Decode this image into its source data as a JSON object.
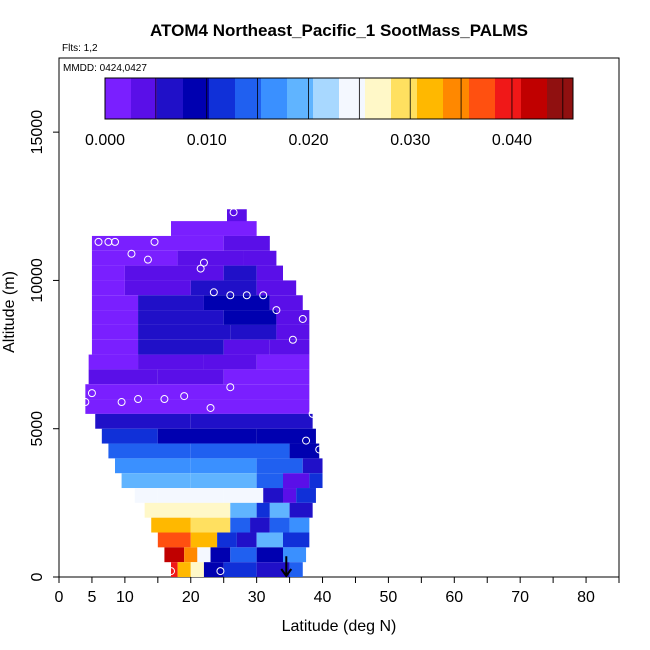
{
  "chart_data": {
    "type": "heatmap",
    "title": "ATOM4 Northeast_Pacific_1 SootMass_PALMS",
    "annotations": [
      "Flts: 1,2",
      "MMDD: 0424,0427"
    ],
    "xlabel": "Latitude (deg N)",
    "ylabel": "Altitude (m)",
    "xlim": [
      0,
      85
    ],
    "ylim": [
      0,
      17500
    ],
    "x_ticks": [
      {
        "value": 0,
        "label": "0"
      },
      {
        "value": 5,
        "label": "5"
      },
      {
        "value": 10,
        "label": "10"
      },
      {
        "value": 20,
        "label": "20"
      },
      {
        "value": 30,
        "label": "30"
      },
      {
        "value": 40,
        "label": "40"
      },
      {
        "value": 50,
        "label": "50"
      },
      {
        "value": 60,
        "label": "60"
      },
      {
        "value": 70,
        "label": "70"
      },
      {
        "value": 80,
        "label": "80"
      }
    ],
    "x_minor_ticks": [
      15,
      25,
      35,
      45,
      55,
      65,
      75,
      85
    ],
    "y_ticks": [
      {
        "value": 0,
        "label": "0"
      },
      {
        "value": 5000,
        "label": "5000"
      },
      {
        "value": 10000,
        "label": "10000"
      },
      {
        "value": 15000,
        "label": "15000"
      }
    ],
    "colorbar": {
      "range": [
        0,
        0.046
      ],
      "ticks": [
        {
          "value": 0.0,
          "label": "0.000"
        },
        {
          "value": 0.01,
          "label": "0.010"
        },
        {
          "value": 0.02,
          "label": "0.020"
        },
        {
          "value": 0.03,
          "label": "0.030"
        },
        {
          "value": 0.04,
          "label": "0.040"
        }
      ],
      "colors": [
        "#7a1fff",
        "#5a0fe8",
        "#2010c8",
        "#0000b0",
        "#1030d8",
        "#2060f0",
        "#3a90ff",
        "#60b4ff",
        "#a8d8ff",
        "#f4f8ff",
        "#fff8c8",
        "#ffe060",
        "#ffb800",
        "#ff8800",
        "#ff5010",
        "#f01818",
        "#c00000",
        "#901010"
      ]
    },
    "rows": [
      {
        "alt": 11900,
        "cells": [
          [
            25.5,
            28.5,
            0.003
          ]
        ]
      },
      {
        "alt": 11500,
        "cells": [
          [
            17,
            30,
            0.002
          ]
        ]
      },
      {
        "alt": 11000,
        "cells": [
          [
            5,
            25,
            0.002
          ],
          [
            25,
            32,
            0.003
          ]
        ]
      },
      {
        "alt": 10500,
        "cells": [
          [
            5,
            18,
            0.002
          ],
          [
            18,
            28,
            0.003
          ],
          [
            28,
            33,
            0.005
          ]
        ]
      },
      {
        "alt": 10000,
        "cells": [
          [
            5,
            10,
            0.002
          ],
          [
            10,
            25,
            0.004
          ],
          [
            25,
            30,
            0.006
          ],
          [
            30,
            34,
            0.005
          ]
        ]
      },
      {
        "alt": 9500,
        "cells": [
          [
            5,
            10,
            0.002
          ],
          [
            10,
            20,
            0.005
          ],
          [
            20,
            30,
            0.007
          ],
          [
            30,
            36,
            0.005
          ]
        ]
      },
      {
        "alt": 9000,
        "cells": [
          [
            5,
            12,
            0.002
          ],
          [
            12,
            22,
            0.006
          ],
          [
            22,
            32,
            0.008
          ],
          [
            32,
            37,
            0.004
          ]
        ]
      },
      {
        "alt": 8500,
        "cells": [
          [
            5,
            12,
            0.002
          ],
          [
            12,
            25,
            0.007
          ],
          [
            25,
            33,
            0.008
          ],
          [
            33,
            38,
            0.005
          ]
        ]
      },
      {
        "alt": 8000,
        "cells": [
          [
            5,
            12,
            0.002
          ],
          [
            12,
            26,
            0.007
          ],
          [
            26,
            33,
            0.006
          ],
          [
            33,
            38,
            0.003
          ]
        ]
      },
      {
        "alt": 7500,
        "cells": [
          [
            5,
            12,
            0.002
          ],
          [
            12,
            25,
            0.006
          ],
          [
            25,
            32,
            0.004
          ],
          [
            32,
            38,
            0.003
          ]
        ]
      },
      {
        "alt": 7000,
        "cells": [
          [
            4.5,
            12,
            0.002
          ],
          [
            12,
            22,
            0.005
          ],
          [
            22,
            30,
            0.003
          ],
          [
            30,
            38,
            0.002
          ]
        ]
      },
      {
        "alt": 6500,
        "cells": [
          [
            4.5,
            15,
            0.003
          ],
          [
            15,
            25,
            0.004
          ],
          [
            25,
            38,
            0.002
          ]
        ]
      },
      {
        "alt": 6000,
        "cells": [
          [
            4,
            38,
            0.002
          ]
        ]
      },
      {
        "alt": 5500,
        "cells": [
          [
            4,
            38,
            0.002
          ]
        ]
      },
      {
        "alt": 5000,
        "cells": [
          [
            5.5,
            20,
            0.006
          ],
          [
            20,
            38.5,
            0.007
          ]
        ]
      },
      {
        "alt": 4500,
        "cells": [
          [
            6.5,
            15,
            0.011
          ],
          [
            15,
            30,
            0.009
          ],
          [
            30,
            39,
            0.008
          ]
        ]
      },
      {
        "alt": 4000,
        "cells": [
          [
            7.5,
            20,
            0.014
          ],
          [
            20,
            35,
            0.013
          ],
          [
            35,
            39.5,
            0.01
          ]
        ]
      },
      {
        "alt": 3500,
        "cells": [
          [
            8.5,
            20,
            0.017
          ],
          [
            20,
            30,
            0.016
          ],
          [
            30,
            37,
            0.014
          ],
          [
            37,
            40,
            0.007
          ]
        ]
      },
      {
        "alt": 3000,
        "cells": [
          [
            9.5,
            20,
            0.02
          ],
          [
            20,
            30,
            0.018
          ],
          [
            30,
            34,
            0.015
          ],
          [
            34,
            38,
            0.005
          ],
          [
            38,
            40,
            0.012
          ]
        ]
      },
      {
        "alt": 2500,
        "cells": [
          [
            11.5,
            15,
            0.024
          ],
          [
            15,
            25,
            0.025
          ],
          [
            25,
            31,
            0.023
          ],
          [
            31,
            34,
            0.007
          ],
          [
            34,
            36,
            0.004
          ],
          [
            36,
            39,
            0.012
          ]
        ]
      },
      {
        "alt": 2000,
        "cells": [
          [
            13,
            17,
            0.026
          ],
          [
            17,
            26,
            0.027
          ],
          [
            26,
            30,
            0.02
          ],
          [
            30,
            32,
            0.012
          ],
          [
            32,
            35,
            0.018
          ],
          [
            35,
            38.5,
            0.006
          ]
        ]
      },
      {
        "alt": 1500,
        "cells": [
          [
            14,
            20,
            0.031
          ],
          [
            20,
            26,
            0.029
          ],
          [
            26,
            29,
            0.013
          ],
          [
            29,
            32,
            0.007
          ],
          [
            32,
            35,
            0.014
          ],
          [
            35,
            38,
            0.016
          ]
        ]
      },
      {
        "alt": 1000,
        "cells": [
          [
            15,
            20,
            0.036
          ],
          [
            20,
            24,
            0.031
          ],
          [
            24,
            27,
            0.011
          ],
          [
            27,
            30,
            0.006
          ],
          [
            30,
            34,
            0.018
          ],
          [
            34,
            38,
            0.012
          ]
        ]
      },
      {
        "alt": 500,
        "cells": [
          [
            16,
            19,
            0.041
          ],
          [
            19,
            21,
            0.034
          ],
          [
            21,
            23,
            0.024
          ],
          [
            23,
            26,
            0.009
          ],
          [
            26,
            30,
            0.015
          ],
          [
            30,
            34,
            0.01
          ],
          [
            34,
            37.5,
            0.016
          ]
        ]
      },
      {
        "alt": 0,
        "cells": [
          [
            17,
            18,
            0.039
          ],
          [
            18,
            20,
            0.033
          ],
          [
            20,
            22,
            0.028
          ],
          [
            22,
            25,
            0.01
          ],
          [
            25,
            30,
            0.012
          ],
          [
            30,
            35,
            0.006
          ],
          [
            35,
            37,
            0.014
          ]
        ]
      }
    ],
    "row_height": 500,
    "samples": [
      {
        "lat": 26.5,
        "alt": 12300
      },
      {
        "lat": 31,
        "alt": 12300
      },
      {
        "lat": 6,
        "alt": 11300
      },
      {
        "lat": 7.5,
        "alt": 11300
      },
      {
        "lat": 8.5,
        "alt": 11300
      },
      {
        "lat": 14.5,
        "alt": 11300
      },
      {
        "lat": 11,
        "alt": 10900
      },
      {
        "lat": 13.5,
        "alt": 10700
      },
      {
        "lat": 22,
        "alt": 10600
      },
      {
        "lat": 21.5,
        "alt": 10400
      },
      {
        "lat": 23.5,
        "alt": 9600
      },
      {
        "lat": 26,
        "alt": 9500
      },
      {
        "lat": 28.5,
        "alt": 9500
      },
      {
        "lat": 31,
        "alt": 9500
      },
      {
        "lat": 33,
        "alt": 9000
      },
      {
        "lat": 37,
        "alt": 8700
      },
      {
        "lat": 39.5,
        "alt": 8500
      },
      {
        "lat": 35.5,
        "alt": 8000
      },
      {
        "lat": 26,
        "alt": 6400
      },
      {
        "lat": 5,
        "alt": 6200
      },
      {
        "lat": 4,
        "alt": 5900
      },
      {
        "lat": 9.5,
        "alt": 5900
      },
      {
        "lat": 12,
        "alt": 6000
      },
      {
        "lat": 16,
        "alt": 6000
      },
      {
        "lat": 19,
        "alt": 6100
      },
      {
        "lat": 23,
        "alt": 5700
      },
      {
        "lat": 38.5,
        "alt": 5500
      },
      {
        "lat": 37.5,
        "alt": 4600
      },
      {
        "lat": 39.5,
        "alt": 4300
      },
      {
        "lat": 17,
        "alt": 200
      },
      {
        "lat": 24.5,
        "alt": 200
      }
    ],
    "arrow": {
      "lat": 34.5,
      "alt_top": 700,
      "alt_bottom": 0
    }
  }
}
